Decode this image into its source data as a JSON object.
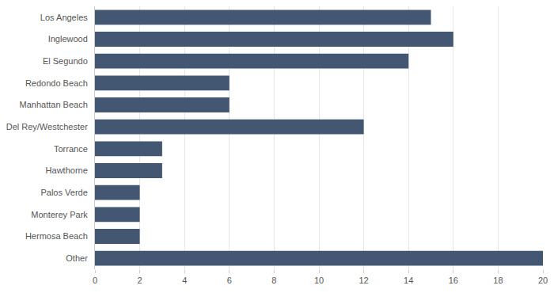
{
  "chart_data": {
    "type": "bar",
    "orientation": "horizontal",
    "categories": [
      "Los Angeles",
      "Inglewood",
      "El Segundo",
      "Redondo Beach",
      "Manhattan Beach",
      "Del Rey/Westchester",
      "Torrance",
      "Hawthorne",
      "Palos Verde",
      "Monterey Park",
      "Hermosa Beach",
      "Other"
    ],
    "values": [
      15,
      16,
      14,
      6,
      6,
      12,
      3,
      3,
      2,
      2,
      2,
      20
    ],
    "color": "#435672",
    "xlim": [
      0,
      20
    ],
    "xticks": [
      0,
      2,
      4,
      6,
      8,
      10,
      12,
      14,
      16,
      18,
      20
    ],
    "grid": true
  }
}
